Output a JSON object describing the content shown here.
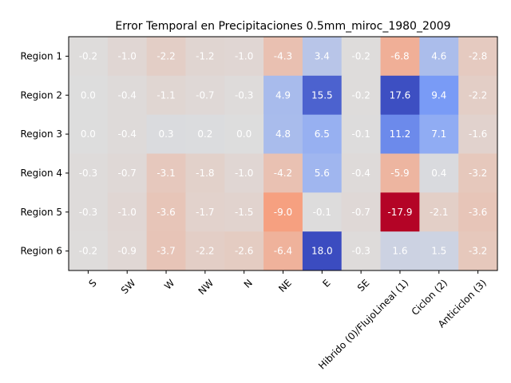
{
  "chart_data": {
    "type": "heatmap",
    "title": "Error Temporal en Precipitaciones 0.5mm_miroc_1980_2009",
    "xlabel": "",
    "ylabel": "",
    "x_categories": [
      "S",
      "SW",
      "W",
      "NW",
      "N",
      "NE",
      "E",
      "SE",
      "Hibrido (0)/FlujoLineal (1)",
      "Ciclon (2)",
      "Anticiclon (3)"
    ],
    "y_categories": [
      "Region 1",
      "Region 2",
      "Region 3",
      "Region 4",
      "Region 5",
      "Region 6"
    ],
    "values": [
      [
        -0.2,
        -1.0,
        -2.2,
        -1.2,
        -1.0,
        -4.3,
        3.4,
        -0.2,
        -6.8,
        4.6,
        -2.8
      ],
      [
        -0.0,
        -0.4,
        -1.1,
        -0.7,
        -0.3,
        4.9,
        15.5,
        -0.2,
        17.6,
        9.4,
        -2.2
      ],
      [
        0.0,
        -0.4,
        0.3,
        0.2,
        -0.0,
        4.8,
        6.5,
        -0.1,
        11.2,
        7.1,
        -1.6
      ],
      [
        -0.3,
        -0.7,
        -3.1,
        -1.8,
        -1.0,
        -4.2,
        5.6,
        -0.4,
        -5.9,
        0.4,
        -3.2
      ],
      [
        -0.3,
        -1.0,
        -3.6,
        -1.7,
        -1.5,
        -9.0,
        -0.1,
        -0.7,
        -17.9,
        -2.1,
        -3.6
      ],
      [
        -0.2,
        -0.9,
        -3.7,
        -2.2,
        -2.6,
        -6.4,
        18.0,
        -0.3,
        1.6,
        1.5,
        -3.2
      ]
    ],
    "colormap": "coolwarm (reversed: positive = blue, negative = red)",
    "color_range": [
      -17.9,
      17.9
    ],
    "grid": false,
    "legend": "none"
  }
}
